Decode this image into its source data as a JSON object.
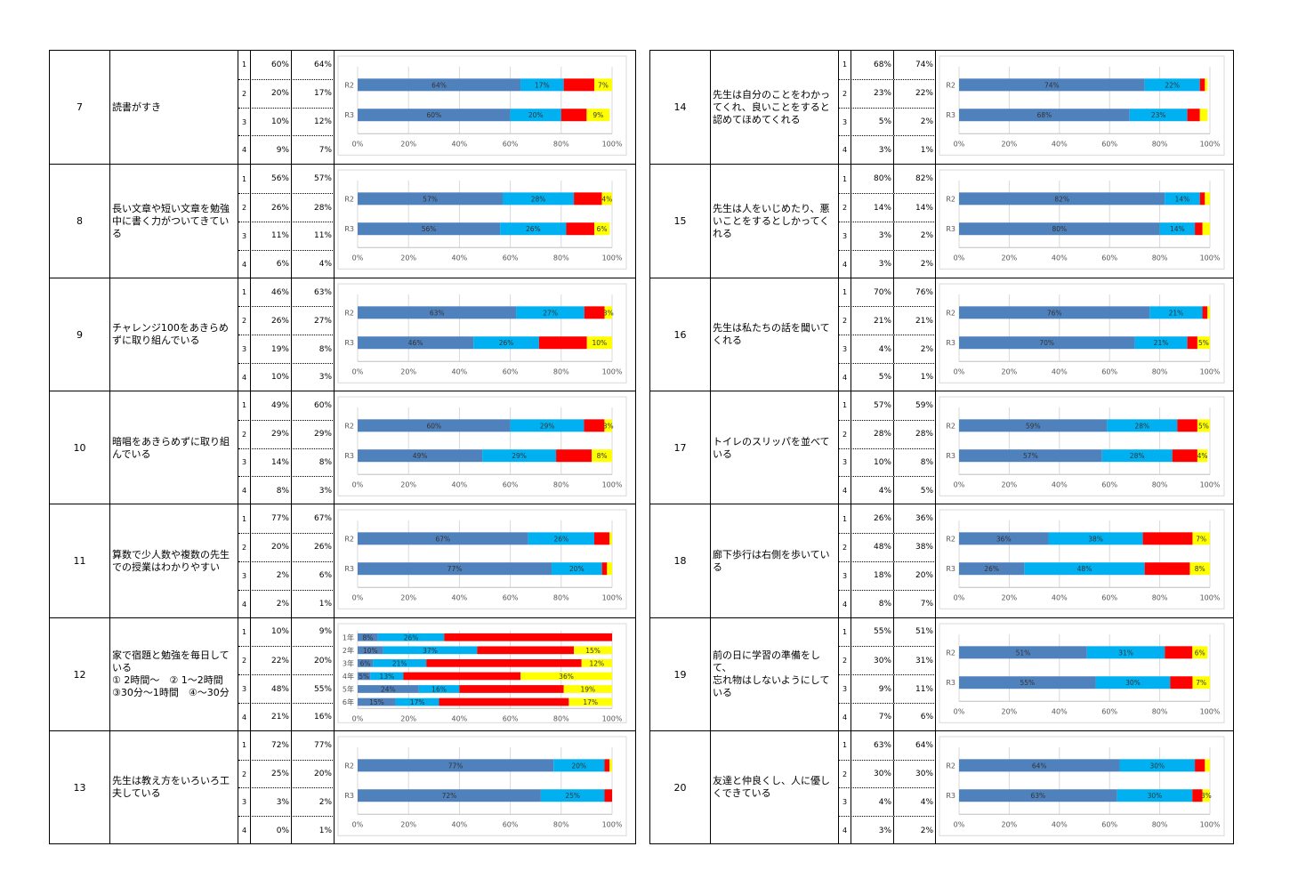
{
  "chart_data": [
    {
      "no": "7",
      "question": "読書がすき",
      "values": [
        {
          "n": "1",
          "r2": "60%",
          "r3": "64%"
        },
        {
          "n": "2",
          "r2": "20%",
          "r3": "17%"
        },
        {
          "n": "3",
          "r2": "10%",
          "r3": "12%"
        },
        {
          "n": "4",
          "r2": "9%",
          "r3": "7%"
        }
      ],
      "type": "bar",
      "xticks": [
        "0%",
        "20%",
        "40%",
        "60%",
        "80%",
        "100%"
      ],
      "bars": [
        {
          "label": "R2",
          "values": [
            64,
            17,
            12,
            7
          ],
          "labels": [
            "64%",
            "17%",
            "",
            "7%"
          ]
        },
        {
          "label": "R3",
          "values": [
            60,
            20,
            10,
            9
          ],
          "labels": [
            "60%",
            "20%",
            "",
            "9%"
          ]
        }
      ]
    },
    {
      "no": "8",
      "question": "長い文章や短い文章を勉強中に書く力がついてきている",
      "values": [
        {
          "n": "1",
          "r2": "56%",
          "r3": "57%"
        },
        {
          "n": "2",
          "r2": "26%",
          "r3": "28%"
        },
        {
          "n": "3",
          "r2": "11%",
          "r3": "11%"
        },
        {
          "n": "4",
          "r2": "6%",
          "r3": "4%"
        }
      ],
      "type": "bar",
      "xticks": [
        "0%",
        "20%",
        "40%",
        "60%",
        "80%",
        "100%"
      ],
      "bars": [
        {
          "label": "R2",
          "values": [
            57,
            28,
            11,
            4
          ],
          "labels": [
            "57%",
            "28%",
            "",
            "4%"
          ]
        },
        {
          "label": "R3",
          "values": [
            56,
            26,
            11,
            6
          ],
          "labels": [
            "56%",
            "26%",
            "",
            "6%"
          ]
        }
      ]
    },
    {
      "no": "9",
      "question": "チャレンジ100をあきらめずに取り組んでいる",
      "values": [
        {
          "n": "1",
          "r2": "46%",
          "r3": "63%"
        },
        {
          "n": "2",
          "r2": "26%",
          "r3": "27%"
        },
        {
          "n": "3",
          "r2": "19%",
          "r3": "8%"
        },
        {
          "n": "4",
          "r2": "10%",
          "r3": "3%"
        }
      ],
      "type": "bar",
      "xticks": [
        "0%",
        "20%",
        "40%",
        "60%",
        "80%",
        "100%"
      ],
      "bars": [
        {
          "label": "R2",
          "values": [
            63,
            27,
            8,
            3
          ],
          "labels": [
            "63%",
            "27%",
            "",
            "3%"
          ]
        },
        {
          "label": "R3",
          "values": [
            46,
            26,
            19,
            10
          ],
          "labels": [
            "46%",
            "26%",
            "",
            "10%"
          ]
        }
      ]
    },
    {
      "no": "10",
      "question": "暗唱をあきらめずに取り組んでいる",
      "values": [
        {
          "n": "1",
          "r2": "49%",
          "r3": "60%"
        },
        {
          "n": "2",
          "r2": "29%",
          "r3": "29%"
        },
        {
          "n": "3",
          "r2": "14%",
          "r3": "8%"
        },
        {
          "n": "4",
          "r2": "8%",
          "r3": "3%"
        }
      ],
      "type": "bar",
      "xticks": [
        "0%",
        "20%",
        "40%",
        "60%",
        "80%",
        "100%"
      ],
      "bars": [
        {
          "label": "R2",
          "values": [
            60,
            29,
            8,
            3
          ],
          "labels": [
            "60%",
            "29%",
            "",
            "3%"
          ]
        },
        {
          "label": "R3",
          "values": [
            49,
            29,
            14,
            8
          ],
          "labels": [
            "49%",
            "29%",
            "",
            "8%"
          ]
        }
      ]
    },
    {
      "no": "11",
      "question": "算数で少人数や複数の先生での授業はわかりやすい",
      "values": [
        {
          "n": "1",
          "r2": "77%",
          "r3": "67%"
        },
        {
          "n": "2",
          "r2": "20%",
          "r3": "26%"
        },
        {
          "n": "3",
          "r2": "2%",
          "r3": "6%"
        },
        {
          "n": "4",
          "r2": "2%",
          "r3": "1%"
        }
      ],
      "type": "bar",
      "xticks": [
        "0%",
        "20%",
        "40%",
        "60%",
        "80%",
        "100%"
      ],
      "bars": [
        {
          "label": "R2",
          "values": [
            67,
            26,
            6,
            1
          ],
          "labels": [
            "67%",
            "26%",
            "",
            ""
          ]
        },
        {
          "label": "R3",
          "values": [
            77,
            20,
            2,
            2
          ],
          "labels": [
            "77%",
            "20%",
            "",
            ""
          ]
        }
      ]
    },
    {
      "no": "12",
      "question": "家で宿題と勉強を毎日している\n① 2時間～　② 1～2時間\n③30分～1時間　④～30分",
      "values": [
        {
          "n": "1",
          "r2": "10%",
          "r3": "9%"
        },
        {
          "n": "2",
          "r2": "22%",
          "r3": "20%"
        },
        {
          "n": "3",
          "r2": "48%",
          "r3": "55%"
        },
        {
          "n": "4",
          "r2": "21%",
          "r3": "16%"
        }
      ],
      "type": "bar",
      "xticks": [
        "0%",
        "20%",
        "40%",
        "60%",
        "80%",
        "100%"
      ],
      "bars": [
        {
          "label": "1年",
          "values": [
            8,
            26,
            66,
            0
          ],
          "labels": [
            "8%",
            "26%",
            "",
            ""
          ]
        },
        {
          "label": "2年",
          "values": [
            10,
            37,
            38,
            15
          ],
          "labels": [
            "10%",
            "37%",
            "",
            "15%"
          ]
        },
        {
          "label": "3年",
          "values": [
            6,
            21,
            61,
            12
          ],
          "labels": [
            "6%",
            "21%",
            "",
            "12%"
          ]
        },
        {
          "label": "4年",
          "values": [
            5,
            13,
            46,
            36
          ],
          "labels": [
            "5%",
            "13%",
            "",
            "36%"
          ]
        },
        {
          "label": "5年",
          "values": [
            24,
            16,
            41,
            19
          ],
          "labels": [
            "24%",
            "16%",
            "",
            "19%"
          ]
        },
        {
          "label": "6年",
          "values": [
            15,
            17,
            51,
            17
          ],
          "labels": [
            "15%",
            "17%",
            "",
            "17%"
          ]
        }
      ]
    },
    {
      "no": "13",
      "question": "先生は教え方をいろいろ工夫している",
      "values": [
        {
          "n": "1",
          "r2": "72%",
          "r3": "77%"
        },
        {
          "n": "2",
          "r2": "25%",
          "r3": "20%"
        },
        {
          "n": "3",
          "r2": "3%",
          "r3": "2%"
        },
        {
          "n": "4",
          "r2": "0%",
          "r3": "1%"
        }
      ],
      "type": "bar",
      "xticks": [
        "0%",
        "20%",
        "40%",
        "60%",
        "80%",
        "100%"
      ],
      "bars": [
        {
          "label": "R2",
          "values": [
            77,
            20,
            2,
            1
          ],
          "labels": [
            "77%",
            "20%",
            "",
            ""
          ]
        },
        {
          "label": "R3",
          "values": [
            72,
            25,
            3,
            0
          ],
          "labels": [
            "72%",
            "25%",
            "",
            ""
          ]
        }
      ]
    },
    {
      "no": "14",
      "question": "先生は自分のことをわかってくれ、良いことをすると認めてほめてくれる",
      "values": [
        {
          "n": "1",
          "r2": "68%",
          "r3": "74%"
        },
        {
          "n": "2",
          "r2": "23%",
          "r3": "22%"
        },
        {
          "n": "3",
          "r2": "5%",
          "r3": "2%"
        },
        {
          "n": "4",
          "r2": "3%",
          "r3": "1%"
        }
      ],
      "type": "bar",
      "xticks": [
        "0%",
        "20%",
        "40%",
        "60%",
        "80%",
        "100%"
      ],
      "bars": [
        {
          "label": "R2",
          "values": [
            74,
            22,
            2,
            1
          ],
          "labels": [
            "74%",
            "22%",
            "",
            ""
          ]
        },
        {
          "label": "R3",
          "values": [
            68,
            23,
            5,
            3
          ],
          "labels": [
            "68%",
            "23%",
            "",
            ""
          ]
        }
      ]
    },
    {
      "no": "15",
      "question": "先生は人をいじめたり、悪いことをするとしかってくれる",
      "values": [
        {
          "n": "1",
          "r2": "80%",
          "r3": "82%"
        },
        {
          "n": "2",
          "r2": "14%",
          "r3": "14%"
        },
        {
          "n": "3",
          "r2": "3%",
          "r3": "2%"
        },
        {
          "n": "4",
          "r2": "3%",
          "r3": "2%"
        }
      ],
      "type": "bar",
      "xticks": [
        "0%",
        "20%",
        "40%",
        "60%",
        "80%",
        "100%"
      ],
      "bars": [
        {
          "label": "R2",
          "values": [
            82,
            14,
            2,
            2
          ],
          "labels": [
            "82%",
            "14%",
            "",
            ""
          ]
        },
        {
          "label": "R3",
          "values": [
            80,
            14,
            3,
            3
          ],
          "labels": [
            "80%",
            "14%",
            "",
            ""
          ]
        }
      ]
    },
    {
      "no": "16",
      "question": "先生は私たちの話を聞いてくれる",
      "values": [
        {
          "n": "1",
          "r2": "70%",
          "r3": "76%"
        },
        {
          "n": "2",
          "r2": "21%",
          "r3": "21%"
        },
        {
          "n": "3",
          "r2": "4%",
          "r3": "2%"
        },
        {
          "n": "4",
          "r2": "5%",
          "r3": "1%"
        }
      ],
      "type": "bar",
      "xticks": [
        "0%",
        "20%",
        "40%",
        "60%",
        "80%",
        "100%"
      ],
      "bars": [
        {
          "label": "R2",
          "values": [
            76,
            21,
            2,
            1
          ],
          "labels": [
            "76%",
            "21%",
            "",
            ""
          ]
        },
        {
          "label": "R3",
          "values": [
            70,
            21,
            4,
            5
          ],
          "labels": [
            "70%",
            "21%",
            "",
            "5%"
          ]
        }
      ]
    },
    {
      "no": "17",
      "question": "トイレのスリッパを並べている",
      "values": [
        {
          "n": "1",
          "r2": "57%",
          "r3": "59%"
        },
        {
          "n": "2",
          "r2": "28%",
          "r3": "28%"
        },
        {
          "n": "3",
          "r2": "10%",
          "r3": "8%"
        },
        {
          "n": "4",
          "r2": "4%",
          "r3": "5%"
        }
      ],
      "type": "bar",
      "xticks": [
        "0%",
        "20%",
        "40%",
        "60%",
        "80%",
        "100%"
      ],
      "bars": [
        {
          "label": "R2",
          "values": [
            59,
            28,
            8,
            5
          ],
          "labels": [
            "59%",
            "28%",
            "",
            "5%"
          ]
        },
        {
          "label": "R3",
          "values": [
            57,
            28,
            10,
            4
          ],
          "labels": [
            "57%",
            "28%",
            "",
            "4%"
          ]
        }
      ]
    },
    {
      "no": "18",
      "question": "廊下歩行は右側を歩いている",
      "values": [
        {
          "n": "1",
          "r2": "26%",
          "r3": "36%"
        },
        {
          "n": "2",
          "r2": "48%",
          "r3": "38%"
        },
        {
          "n": "3",
          "r2": "18%",
          "r3": "20%"
        },
        {
          "n": "4",
          "r2": "8%",
          "r3": "7%"
        }
      ],
      "type": "bar",
      "xticks": [
        "0%",
        "20%",
        "40%",
        "60%",
        "80%",
        "100%"
      ],
      "bars": [
        {
          "label": "R2",
          "values": [
            36,
            38,
            20,
            7
          ],
          "labels": [
            "36%",
            "38%",
            "",
            "7%"
          ]
        },
        {
          "label": "R3",
          "values": [
            26,
            48,
            18,
            8
          ],
          "labels": [
            "26%",
            "48%",
            "",
            "8%"
          ]
        }
      ]
    },
    {
      "no": "19",
      "question": "前の日に学習の準備をして、\n忘れ物はしないようにしている",
      "values": [
        {
          "n": "1",
          "r2": "55%",
          "r3": "51%"
        },
        {
          "n": "2",
          "r2": "30%",
          "r3": "31%"
        },
        {
          "n": "3",
          "r2": "9%",
          "r3": "11%"
        },
        {
          "n": "4",
          "r2": "7%",
          "r3": "6%"
        }
      ],
      "type": "bar",
      "xticks": [
        "0%",
        "20%",
        "40%",
        "60%",
        "80%",
        "100%"
      ],
      "bars": [
        {
          "label": "R2",
          "values": [
            51,
            31,
            11,
            6
          ],
          "labels": [
            "51%",
            "31%",
            "",
            "6%"
          ]
        },
        {
          "label": "R3",
          "values": [
            55,
            30,
            9,
            7
          ],
          "labels": [
            "55%",
            "30%",
            "",
            "7%"
          ]
        }
      ]
    },
    {
      "no": "20",
      "question": "友達と仲良くし、人に優しくできている",
      "values": [
        {
          "n": "1",
          "r2": "63%",
          "r3": "64%"
        },
        {
          "n": "2",
          "r2": "30%",
          "r3": "30%"
        },
        {
          "n": "3",
          "r2": "4%",
          "r3": "4%"
        },
        {
          "n": "4",
          "r2": "3%",
          "r3": "2%"
        }
      ],
      "type": "bar",
      "xticks": [
        "0%",
        "20%",
        "40%",
        "60%",
        "80%",
        "100%"
      ],
      "bars": [
        {
          "label": "R2",
          "values": [
            64,
            30,
            4,
            2
          ],
          "labels": [
            "64%",
            "30%",
            "",
            ""
          ]
        },
        {
          "label": "R3",
          "values": [
            63,
            30,
            4,
            3
          ],
          "labels": [
            "63%",
            "30%",
            "",
            "3%"
          ]
        }
      ]
    }
  ],
  "colors": {
    "opt1": "#4f81bd",
    "opt2": "#00b0f0",
    "opt3": "#ff0000",
    "opt4": "#ffff00",
    "grid": "#d9d9d9",
    "axis": "#bfbfbf"
  }
}
